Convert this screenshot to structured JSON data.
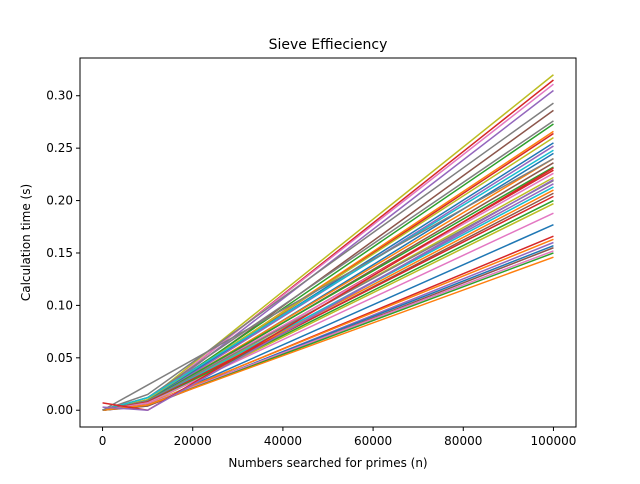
{
  "chart_data": {
    "type": "line",
    "title": "Sieve Effieciency",
    "xlabel": "Numbers searched for primes (n)",
    "ylabel": "Calculation time (s)",
    "xlim": [
      -5000,
      105000
    ],
    "ylim": [
      -0.016,
      0.336
    ],
    "x_ticks": [
      0,
      20000,
      40000,
      60000,
      80000,
      100000
    ],
    "x_tick_labels": [
      "0",
      "20000",
      "40000",
      "60000",
      "80000",
      "100000"
    ],
    "y_ticks": [
      0.0,
      0.05,
      0.1,
      0.15,
      0.2,
      0.25,
      0.3
    ],
    "y_tick_labels": [
      "0.00",
      "0.05",
      "0.10",
      "0.15",
      "0.20",
      "0.25",
      "0.30"
    ],
    "grid": false,
    "legend": false,
    "x": [
      0,
      10000,
      100000
    ],
    "series": [
      {
        "color": "#bcbd22",
        "values": [
          0.0,
          0.01,
          0.32
        ]
      },
      {
        "color": "#d62728",
        "values": [
          0.0,
          0.008,
          0.315
        ]
      },
      {
        "color": "#e377c2",
        "values": [
          0.0,
          0.009,
          0.311
        ]
      },
      {
        "color": "#9467bd",
        "values": [
          0.0,
          0.007,
          0.305
        ]
      },
      {
        "color": "#7f7f7f",
        "values": [
          0.0,
          0.015,
          0.293
        ]
      },
      {
        "color": "#8c564b",
        "values": [
          0.0,
          0.006,
          0.286
        ]
      },
      {
        "color": "#7f7f7f",
        "values": [
          0.0,
          0.012,
          0.276
        ]
      },
      {
        "color": "#2ca02c",
        "values": [
          0.0,
          0.009,
          0.273
        ]
      },
      {
        "color": "#ff7f0e",
        "values": [
          0.0,
          0.008,
          0.266
        ]
      },
      {
        "color": "#d62728",
        "values": [
          0.0,
          0.007,
          0.264
        ]
      },
      {
        "color": "#bcbd22",
        "values": [
          0.0,
          0.01,
          0.26
        ]
      },
      {
        "color": "#1f77b4",
        "values": [
          0.0,
          0.009,
          0.255
        ]
      },
      {
        "color": "#9467bd",
        "values": [
          0.0,
          0.008,
          0.252
        ]
      },
      {
        "color": "#17becf",
        "values": [
          0.0,
          0.012,
          0.248
        ]
      },
      {
        "color": "#1f77b4",
        "values": [
          0.0,
          0.006,
          0.245
        ]
      },
      {
        "color": "#ff7f0e",
        "values": [
          0.0,
          0.008,
          0.24
        ]
      },
      {
        "color": "#8c564b",
        "values": [
          0.0,
          0.007,
          0.236
        ]
      },
      {
        "color": "#2ca02c",
        "values": [
          0.0,
          0.009,
          0.232
        ]
      },
      {
        "color": "#d62728",
        "values": [
          0.0,
          0.006,
          0.229
        ]
      },
      {
        "color": "#e377c2",
        "values": [
          0.0,
          0.008,
          0.226
        ]
      },
      {
        "color": "#bcbd22",
        "values": [
          0.0,
          0.007,
          0.222
        ]
      },
      {
        "color": "#7f7f7f",
        "values": [
          0.0,
          0.009,
          0.219
        ]
      },
      {
        "color": "#9467bd",
        "values": [
          0.0,
          0.006,
          0.216
        ]
      },
      {
        "color": "#17becf",
        "values": [
          0.0,
          0.008,
          0.213
        ]
      },
      {
        "color": "#ff7f0e",
        "values": [
          0.0,
          0.007,
          0.21
        ]
      },
      {
        "color": "#8c564b",
        "values": [
          0.0,
          0.006,
          0.207
        ]
      },
      {
        "color": "#d62728",
        "values": [
          0.0,
          0.008,
          0.204
        ]
      },
      {
        "color": "#2ca02c",
        "values": [
          0.0,
          0.007,
          0.2
        ]
      },
      {
        "color": "#bcbd22",
        "values": [
          0.0,
          0.006,
          0.197
        ]
      },
      {
        "color": "#e377c2",
        "values": [
          0.0,
          0.007,
          0.188
        ]
      },
      {
        "color": "#1f77b4",
        "values": [
          0.0,
          0.005,
          0.177
        ]
      },
      {
        "color": "#d62728",
        "values": [
          0.0,
          0.005,
          0.166
        ]
      },
      {
        "color": "#ff7f0e",
        "values": [
          0.0,
          0.006,
          0.163
        ]
      },
      {
        "color": "#9467bd",
        "values": [
          0.0,
          0.004,
          0.16
        ]
      },
      {
        "color": "#1f77b4",
        "values": [
          0.0,
          0.005,
          0.157
        ]
      },
      {
        "color": "#8c564b",
        "values": [
          0.0,
          0.004,
          0.155
        ]
      },
      {
        "color": "#e377c2",
        "values": [
          0.0,
          0.006,
          0.152
        ]
      },
      {
        "color": "#2ca02c",
        "values": [
          0.0,
          0.005,
          0.15
        ]
      },
      {
        "color": "#ff7f0e",
        "values": [
          0.0,
          0.005,
          0.146
        ]
      },
      {
        "color": "#7f7f7f",
        "values": [
          0.0,
          0.024,
          0.24
        ]
      },
      {
        "color": "#d62728",
        "values": [
          0.007,
          0.0,
          0.231
        ]
      },
      {
        "color": "#9467bd",
        "values": [
          0.003,
          0.0,
          0.22
        ]
      }
    ]
  }
}
